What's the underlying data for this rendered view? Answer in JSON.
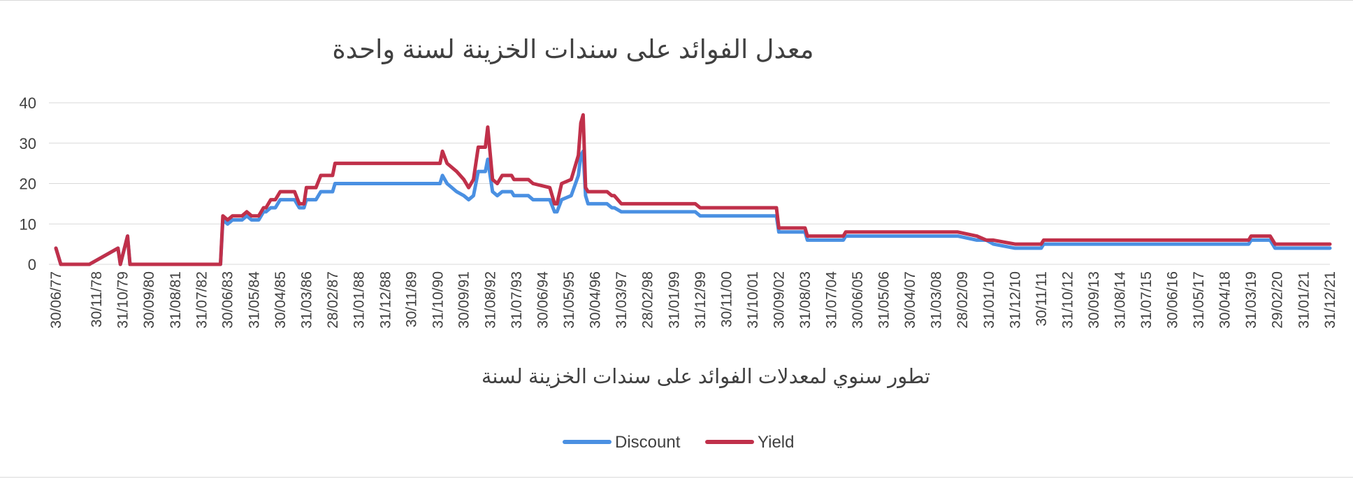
{
  "chart_data": {
    "type": "line",
    "title": "معدل الفوائد على سندات الخزينة لسنة واحدة",
    "xlabel": "تطور سنوي لمعدلات الفوائد على سندات الخزينة لسنة",
    "ylabel": "",
    "ylim": [
      0,
      40
    ],
    "yticks": [
      "0",
      "10",
      "20",
      "30",
      "40"
    ],
    "grid": true,
    "legend_position": "bottom",
    "x_tick_labels": [
      "30/06/77",
      "30/11/78",
      "31/10/79",
      "30/09/80",
      "31/08/81",
      "31/07/82",
      "30/06/83",
      "31/05/84",
      "30/04/85",
      "31/03/86",
      "28/02/87",
      "31/01/88",
      "31/12/88",
      "30/11/89",
      "31/10/90",
      "30/09/91",
      "31/08/92",
      "31/07/93",
      "30/06/94",
      "31/05/95",
      "30/04/96",
      "31/03/97",
      "28/02/98",
      "31/01/99",
      "31/12/99",
      "30/11/00",
      "31/10/01",
      "30/09/02",
      "31/08/03",
      "31/07/04",
      "30/06/05",
      "31/05/06",
      "30/04/07",
      "31/03/08",
      "28/02/09",
      "31/01/10",
      "31/12/10",
      "30/11/11",
      "31/10/12",
      "30/09/13",
      "31/08/14",
      "31/07/15",
      "30/06/16",
      "31/05/17",
      "30/04/18",
      "31/03/19",
      "29/02/20",
      "31/01/21",
      "31/12/21"
    ],
    "series": [
      {
        "name": "Discount",
        "color": "#4a90e2",
        "points": [
          [
            "30/06/77",
            4
          ],
          [
            "31/08/77",
            0
          ],
          [
            "31/08/78",
            0
          ],
          [
            "31/08/79",
            4
          ],
          [
            "30/09/79",
            0
          ],
          [
            "31/12/79",
            7
          ],
          [
            "31/01/80",
            0
          ],
          [
            "31/03/83",
            0
          ],
          [
            "30/04/83",
            11
          ],
          [
            "30/06/83",
            10
          ],
          [
            "31/08/83",
            11
          ],
          [
            "31/12/83",
            11
          ],
          [
            "29/02/84",
            12
          ],
          [
            "30/04/84",
            11
          ],
          [
            "31/07/84",
            11
          ],
          [
            "30/09/84",
            13
          ],
          [
            "31/10/84",
            13
          ],
          [
            "31/12/84",
            14
          ],
          [
            "28/02/85",
            14
          ],
          [
            "30/04/85",
            16
          ],
          [
            "31/10/85",
            16
          ],
          [
            "31/12/85",
            14
          ],
          [
            "28/02/86",
            14
          ],
          [
            "31/03/86",
            16
          ],
          [
            "31/07/86",
            16
          ],
          [
            "30/09/86",
            18
          ],
          [
            "28/02/87",
            18
          ],
          [
            "31/03/87",
            20
          ],
          [
            "30/11/90",
            20
          ],
          [
            "31/12/90",
            22
          ],
          [
            "28/02/91",
            20
          ],
          [
            "30/06/91",
            18
          ],
          [
            "30/09/91",
            17
          ],
          [
            "30/11/91",
            16
          ],
          [
            "31/01/92",
            17
          ],
          [
            "31/03/92",
            23
          ],
          [
            "30/06/92",
            23
          ],
          [
            "31/07/92",
            26
          ],
          [
            "30/09/92",
            18
          ],
          [
            "30/11/92",
            17
          ],
          [
            "31/01/93",
            18
          ],
          [
            "31/05/93",
            18
          ],
          [
            "30/06/93",
            17
          ],
          [
            "31/12/93",
            17
          ],
          [
            "28/02/94",
            16
          ],
          [
            "30/09/94",
            16
          ],
          [
            "30/11/94",
            13
          ],
          [
            "31/12/94",
            13
          ],
          [
            "28/02/95",
            16
          ],
          [
            "30/06/95",
            17
          ],
          [
            "30/09/95",
            22
          ],
          [
            "31/10/95",
            27
          ],
          [
            "30/11/95",
            28
          ],
          [
            "31/12/95",
            17
          ],
          [
            "31/01/96",
            15
          ],
          [
            "30/09/96",
            15
          ],
          [
            "30/11/96",
            14
          ],
          [
            "31/12/96",
            14
          ],
          [
            "31/03/97",
            13
          ],
          [
            "31/12/98",
            13
          ],
          [
            "31/01/99",
            13
          ],
          [
            "31/10/99",
            13
          ],
          [
            "31/12/99",
            12
          ],
          [
            "31/08/02",
            12
          ],
          [
            "30/09/02",
            8
          ],
          [
            "31/08/03",
            8
          ],
          [
            "30/09/03",
            6
          ],
          [
            "31/12/04",
            6
          ],
          [
            "31/01/05",
            7
          ],
          [
            "30/06/08",
            7
          ],
          [
            "31/12/08",
            7
          ],
          [
            "31/08/09",
            6
          ],
          [
            "31/12/09",
            6
          ],
          [
            "31/03/10",
            5
          ],
          [
            "31/12/10",
            4
          ],
          [
            "30/11/11",
            4
          ],
          [
            "31/12/11",
            5
          ],
          [
            "28/02/19",
            5
          ],
          [
            "31/03/19",
            6
          ],
          [
            "30/11/19",
            6
          ],
          [
            "31/01/20",
            4
          ],
          [
            "31/12/21",
            4
          ]
        ]
      },
      {
        "name": "Yield",
        "color": "#c0304a",
        "points": [
          [
            "30/06/77",
            4
          ],
          [
            "31/08/77",
            0
          ],
          [
            "31/08/78",
            0
          ],
          [
            "31/08/79",
            4
          ],
          [
            "30/09/79",
            0
          ],
          [
            "31/12/79",
            7
          ],
          [
            "31/01/80",
            0
          ],
          [
            "31/03/83",
            0
          ],
          [
            "30/04/83",
            12
          ],
          [
            "30/06/83",
            11
          ],
          [
            "31/08/83",
            12
          ],
          [
            "31/12/83",
            12
          ],
          [
            "29/02/84",
            13
          ],
          [
            "30/04/84",
            12
          ],
          [
            "31/07/84",
            12
          ],
          [
            "30/09/84",
            14
          ],
          [
            "31/10/84",
            14
          ],
          [
            "31/12/84",
            16
          ],
          [
            "28/02/85",
            16
          ],
          [
            "30/04/85",
            18
          ],
          [
            "31/10/85",
            18
          ],
          [
            "31/12/85",
            15
          ],
          [
            "28/02/86",
            15
          ],
          [
            "31/03/86",
            19
          ],
          [
            "31/07/86",
            19
          ],
          [
            "30/09/86",
            22
          ],
          [
            "28/02/87",
            22
          ],
          [
            "31/03/87",
            25
          ],
          [
            "30/11/90",
            25
          ],
          [
            "31/12/90",
            28
          ],
          [
            "28/02/91",
            25
          ],
          [
            "30/06/91",
            23
          ],
          [
            "30/09/91",
            21
          ],
          [
            "30/11/91",
            19
          ],
          [
            "31/01/92",
            21
          ],
          [
            "31/03/92",
            29
          ],
          [
            "30/06/92",
            29
          ],
          [
            "31/07/92",
            34
          ],
          [
            "30/09/92",
            21
          ],
          [
            "30/11/92",
            20
          ],
          [
            "31/01/93",
            22
          ],
          [
            "31/05/93",
            22
          ],
          [
            "30/06/93",
            21
          ],
          [
            "31/12/93",
            21
          ],
          [
            "28/02/94",
            20
          ],
          [
            "30/09/94",
            19
          ],
          [
            "30/11/94",
            15
          ],
          [
            "31/12/94",
            15
          ],
          [
            "28/02/95",
            20
          ],
          [
            "30/06/95",
            21
          ],
          [
            "30/09/95",
            27
          ],
          [
            "31/10/95",
            35
          ],
          [
            "30/11/95",
            37
          ],
          [
            "31/12/95",
            19
          ],
          [
            "31/01/96",
            18
          ],
          [
            "30/09/96",
            18
          ],
          [
            "30/11/96",
            17
          ],
          [
            "31/12/96",
            17
          ],
          [
            "31/03/97",
            15
          ],
          [
            "31/12/98",
            15
          ],
          [
            "31/01/99",
            15
          ],
          [
            "31/10/99",
            15
          ],
          [
            "31/12/99",
            14
          ],
          [
            "31/08/02",
            14
          ],
          [
            "30/09/02",
            9
          ],
          [
            "31/08/03",
            9
          ],
          [
            "30/09/03",
            7
          ],
          [
            "31/12/04",
            7
          ],
          [
            "31/01/05",
            8
          ],
          [
            "30/06/08",
            8
          ],
          [
            "31/12/08",
            8
          ],
          [
            "31/08/09",
            7
          ],
          [
            "31/12/09",
            6
          ],
          [
            "31/03/10",
            6
          ],
          [
            "31/12/10",
            5
          ],
          [
            "30/11/11",
            5
          ],
          [
            "31/12/11",
            6
          ],
          [
            "28/02/19",
            6
          ],
          [
            "31/03/19",
            7
          ],
          [
            "30/11/19",
            7
          ],
          [
            "31/01/20",
            5
          ],
          [
            "31/12/21",
            5
          ]
        ]
      }
    ]
  }
}
